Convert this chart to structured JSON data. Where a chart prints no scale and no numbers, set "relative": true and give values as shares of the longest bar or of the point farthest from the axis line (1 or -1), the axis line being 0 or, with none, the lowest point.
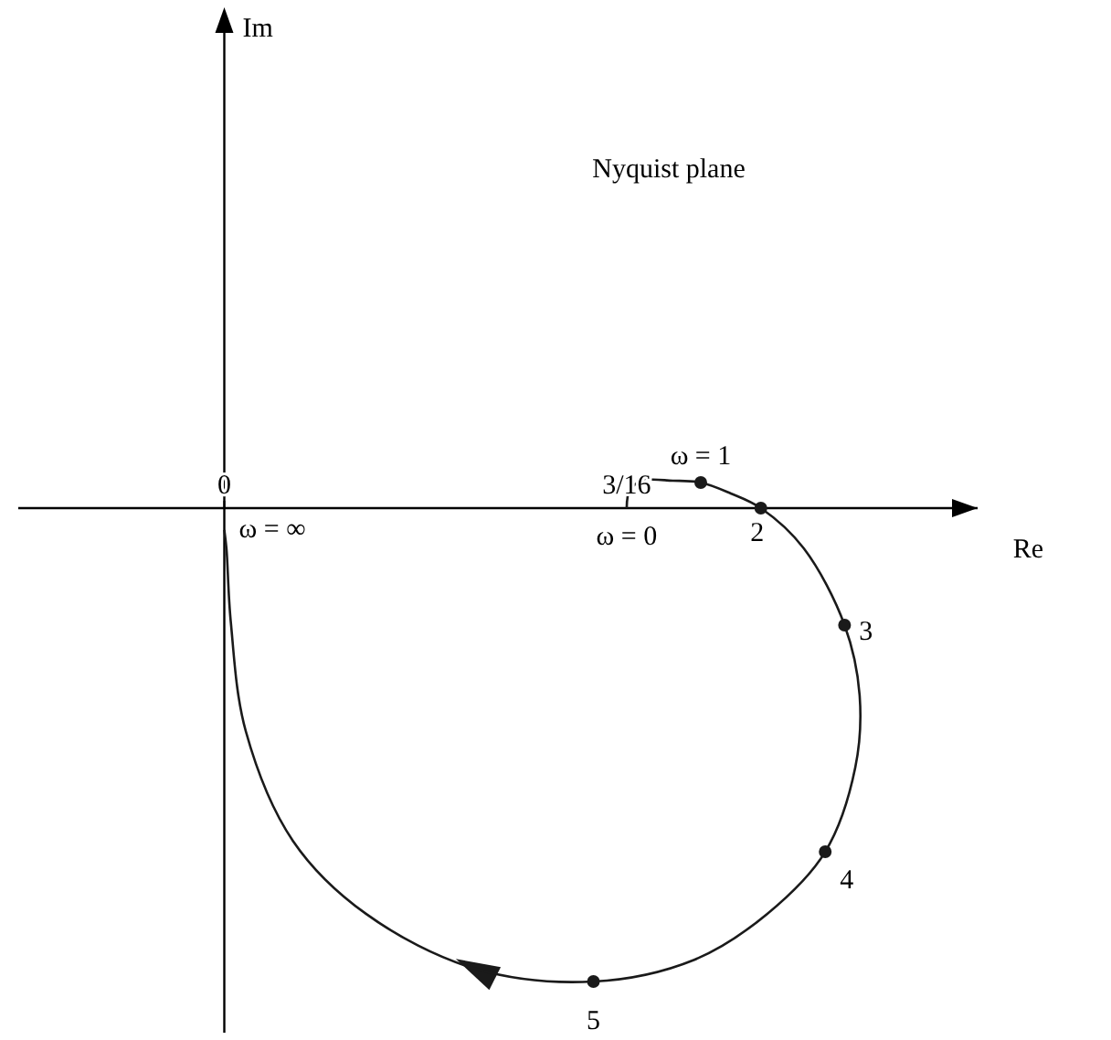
{
  "chart_data": {
    "type": "line",
    "title": "Nyquist plane",
    "xlabel": "Re",
    "relative": true,
    "xlim": [
      -0.096,
      0.351
    ],
    "xticks": [
      0,
      {
        "value": 0.1875,
        "label": "3/16"
      }
    ],
    "series": [
      {
        "type": "line",
        "color": "#1a1a1a",
        "x": [
          0.1875,
          0.189,
          0.195,
          0.209,
          0.222,
          0.236,
          0.25,
          0.27,
          0.289,
          0.296,
          0.294,
          0.28,
          0.253,
          0.219,
          0.172,
          0.117,
          0.066,
          0.032,
          0.01,
          0.003,
          0.001,
          0
        ],
        "values": [
          0,
          0.039,
          0.058,
          0.058,
          0.054,
          0.031,
          0,
          -0.085,
          -0.247,
          -0.394,
          -0.548,
          -0.726,
          -0.857,
          -0.954,
          -1,
          -0.973,
          -0.857,
          -0.703,
          -0.471,
          -0.239,
          -0.085,
          -0.046
        ]
      },
      {
        "type": "scatter",
        "color": "#1a1a1a",
        "x": [
          0.222,
          0.25,
          0.289,
          0.28,
          0.172
        ],
        "values": [
          0.054,
          0,
          -0.247,
          -0.726,
          -1
        ]
      }
    ],
    "annotations": [
      {
        "text": "ω = 1",
        "x": 0.222,
        "y": 0.054
      },
      {
        "text": "2",
        "x": 0.25,
        "y": 0
      },
      {
        "text": "3",
        "x": 0.289,
        "y": -0.247
      },
      {
        "text": "4",
        "x": 0.28,
        "y": -0.726
      },
      {
        "text": "5",
        "x": 0.172,
        "y": -1
      },
      {
        "text": "ω = 0",
        "x": 0.1875,
        "y": 0
      },
      "ω = ∞",
      "Im"
    ]
  }
}
